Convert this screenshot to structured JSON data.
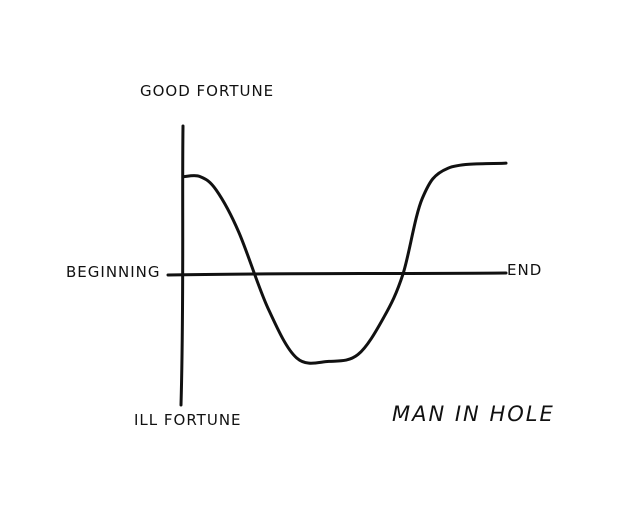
{
  "labels": {
    "top": "GOOD FORTUNE",
    "bottom": "ILL FORTUNE",
    "left": "BEGINNING",
    "right": "END",
    "title": "MAN IN HOLE"
  },
  "chart_data": {
    "type": "line",
    "title": "MAN IN HOLE",
    "axis": {
      "y_top_label": "GOOD FORTUNE",
      "y_bottom_label": "ILL FORTUNE",
      "x_start_label": "BEGINNING",
      "x_end_label": "END"
    },
    "series": [
      {
        "points": [
          [
            0.0,
            0.58
          ],
          [
            0.05,
            0.58
          ],
          [
            0.1,
            0.5
          ],
          [
            0.17,
            0.25
          ],
          [
            0.26,
            -0.2
          ],
          [
            0.35,
            -0.5
          ],
          [
            0.45,
            -0.52
          ],
          [
            0.54,
            -0.48
          ],
          [
            0.62,
            -0.26
          ],
          [
            0.68,
            0.0
          ],
          [
            0.74,
            0.45
          ],
          [
            0.82,
            0.63
          ],
          [
            1.0,
            0.66
          ]
        ]
      }
    ],
    "xlim": [
      0,
      1
    ],
    "ylim": [
      -0.7,
      0.7
    ],
    "color": "#111111"
  }
}
